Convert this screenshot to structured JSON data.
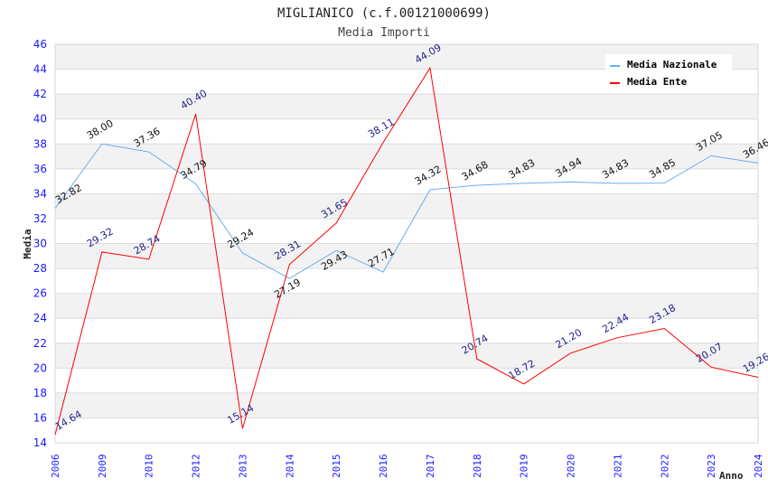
{
  "chart_data": {
    "type": "line",
    "title": "MIGLIANICO (c.f.00121000699)",
    "subtitle": "Media Importi",
    "xlabel": "Anno",
    "ylabel": "Media",
    "ylim": [
      14,
      46
    ],
    "yticks": [
      14,
      16,
      18,
      20,
      22,
      24,
      26,
      28,
      30,
      32,
      34,
      36,
      38,
      40,
      42,
      44,
      46
    ],
    "categories": [
      "2006",
      "2009",
      "2010",
      "2012",
      "2013",
      "2014",
      "2015",
      "2016",
      "2017",
      "2018",
      "2019",
      "2020",
      "2021",
      "2022",
      "2023",
      "2024"
    ],
    "grid": true,
    "legend_position": "top-right",
    "series": [
      {
        "name": "Media Nazionale",
        "color": "#6aaef0",
        "label_color": "#111111",
        "values": [
          32.82,
          38.0,
          37.36,
          34.79,
          29.24,
          27.19,
          29.43,
          27.71,
          34.32,
          34.68,
          34.83,
          34.94,
          34.83,
          34.85,
          37.05,
          36.46
        ],
        "labels": [
          "32.82",
          "38.00",
          "37.36",
          "34.79",
          "29.24",
          "27.19",
          "29.43",
          "27.71",
          "34.32",
          "34.68",
          "34.83",
          "34.94",
          "34.83",
          "34.85",
          "37.05",
          "36.46"
        ]
      },
      {
        "name": "Media Ente",
        "color": "#ff0000",
        "label_color": "#22228a",
        "values": [
          14.64,
          29.32,
          28.74,
          40.4,
          15.14,
          28.31,
          31.65,
          38.11,
          44.09,
          20.74,
          18.72,
          21.2,
          22.44,
          23.18,
          20.07,
          19.26
        ],
        "labels": [
          "14.64",
          "29.32",
          "28.74",
          "40.40",
          "15.14",
          "28.31",
          "31.65",
          "38.11",
          "44.09",
          "20.74",
          "18.72",
          "21.20",
          "22.44",
          "23.18",
          "20.07",
          "19.26"
        ]
      }
    ]
  }
}
